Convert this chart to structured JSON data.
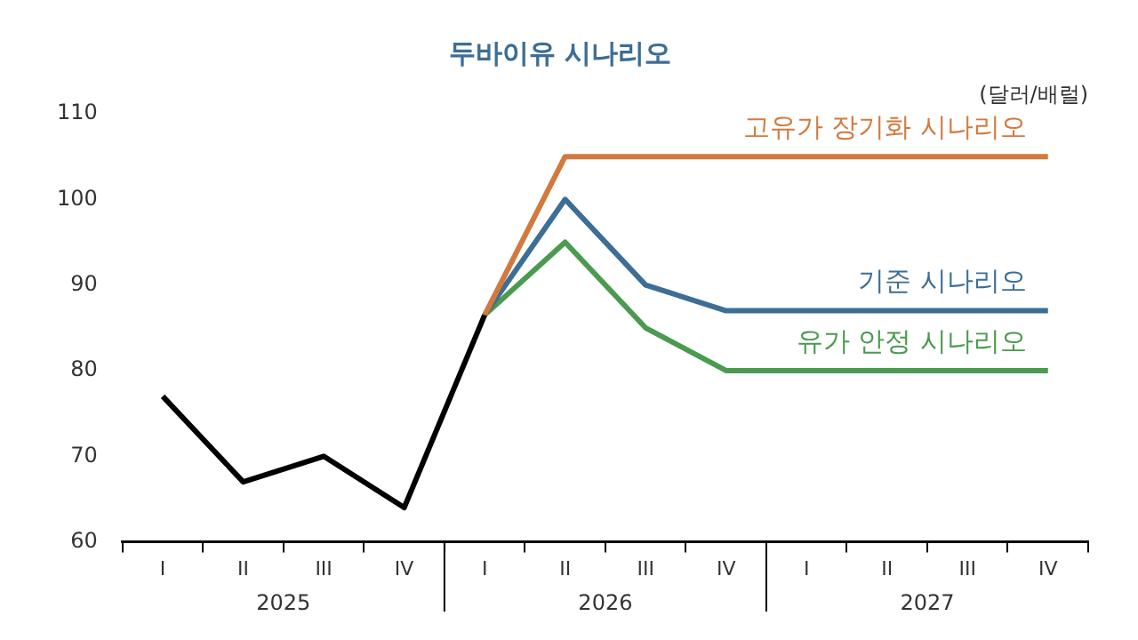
{
  "chart_data": {
    "type": "line",
    "title": "두바이유 시나리오",
    "ylabel": "(달러/배럴)",
    "categories": [
      "I",
      "II",
      "III",
      "IV",
      "I",
      "II",
      "III",
      "IV",
      "I",
      "II",
      "III",
      "IV"
    ],
    "annotations": [
      "2025",
      "2026",
      "2027"
    ],
    "ylim": [
      60,
      110
    ],
    "yticks": [
      60,
      70,
      80,
      90,
      100,
      110
    ],
    "marker": "none",
    "line_style": "solid",
    "series": [
      {
        "color": "#000000",
        "values": [
          77,
          67,
          70,
          64,
          86.5,
          null,
          null,
          null,
          null,
          null,
          null,
          null
        ]
      },
      {
        "name": "고유가 장기화 시나리오",
        "color": "#d27a3e",
        "values": [
          null,
          null,
          null,
          null,
          86.5,
          105,
          105,
          105,
          105,
          105,
          105,
          105
        ]
      },
      {
        "name": "기준 시나리오",
        "color": "#3c6e96",
        "values": [
          null,
          null,
          null,
          null,
          86.5,
          100,
          90,
          87,
          87,
          87,
          87,
          87
        ]
      },
      {
        "name": "유가 안정 시나리오",
        "color": "#4a9a4f",
        "values": [
          null,
          null,
          null,
          null,
          86.5,
          95,
          85,
          80,
          80,
          80,
          80,
          80
        ]
      }
    ]
  }
}
